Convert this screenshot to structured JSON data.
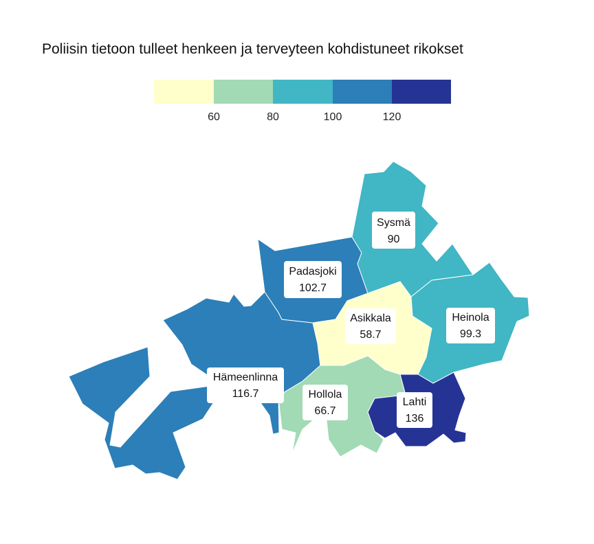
{
  "title": "Poliisin tietoon tulleet henkeen ja terveyteen kohdistuneet rikokset",
  "legend": {
    "breaks": [
      60,
      80,
      100,
      120
    ],
    "tick_labels": [
      "60",
      "80",
      "100",
      "120"
    ],
    "colors": [
      "#ffffcc",
      "#a1dab4",
      "#41b6c4",
      "#2c7fb8",
      "#253494"
    ]
  },
  "regions": [
    {
      "name": "Sysmä",
      "value": 90,
      "value_label": "90",
      "color": "#41b6c4"
    },
    {
      "name": "Padasjoki",
      "value": 102.7,
      "value_label": "102.7",
      "color": "#2c7fb8"
    },
    {
      "name": "Asikkala",
      "value": 58.7,
      "value_label": "58.7",
      "color": "#ffffcc"
    },
    {
      "name": "Heinola",
      "value": 99.3,
      "value_label": "99.3",
      "color": "#41b6c4"
    },
    {
      "name": "Hämeenlinna",
      "value": 116.7,
      "value_label": "116.7",
      "color": "#2c7fb8"
    },
    {
      "name": "Hollola",
      "value": 66.7,
      "value_label": "66.7",
      "color": "#a1dab4"
    },
    {
      "name": "Lahti",
      "value": 136,
      "value_label": "136",
      "color": "#253494"
    }
  ]
}
